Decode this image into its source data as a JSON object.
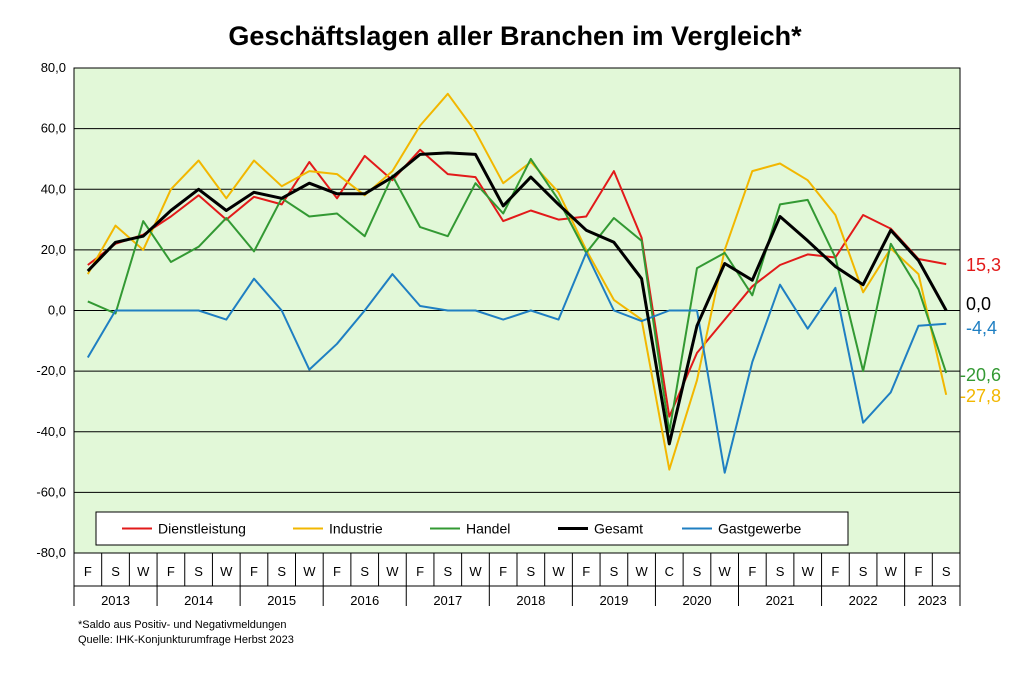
{
  "chart_data": {
    "type": "line",
    "title": "Geschäftslagen aller Branchen im Vergleich*",
    "ylim": [
      -80,
      80
    ],
    "yticks": [
      "80,0",
      "60,0",
      "40,0",
      "20,0",
      "0,0",
      "-20,0",
      "-40,0",
      "-60,0",
      "-80,0"
    ],
    "grid": true,
    "legend_position": "bottom-inside",
    "background": "#e2f8d8",
    "x": [
      "F",
      "S",
      "W",
      "F",
      "S",
      "W",
      "F",
      "S",
      "W",
      "F",
      "S",
      "W",
      "F",
      "S",
      "W",
      "F",
      "S",
      "W",
      "F",
      "S",
      "W",
      "C",
      "S",
      "W",
      "F",
      "S",
      "W",
      "F",
      "S",
      "W",
      "F",
      "S"
    ],
    "years": [
      {
        "label": "2013",
        "span": 3
      },
      {
        "label": "2014",
        "span": 3
      },
      {
        "label": "2015",
        "span": 3
      },
      {
        "label": "2016",
        "span": 3
      },
      {
        "label": "2017",
        "span": 3
      },
      {
        "label": "2018",
        "span": 3
      },
      {
        "label": "2019",
        "span": 3
      },
      {
        "label": "2020",
        "span": 3
      },
      {
        "label": "2021",
        "span": 3
      },
      {
        "label": "2022",
        "span": 3
      },
      {
        "label": "2023",
        "span": 2
      }
    ],
    "series": [
      {
        "name": "Dienstleistung",
        "color": "#e21a1a",
        "width": 2,
        "end_label": "15,3",
        "values": [
          15,
          22,
          25,
          31,
          38,
          30,
          37.5,
          35,
          49,
          37,
          51,
          43,
          53,
          45,
          44,
          29.5,
          33,
          30,
          31,
          46,
          24,
          -35,
          -14,
          -3,
          8,
          15,
          18.5,
          17.5,
          31.5,
          27,
          17,
          15.3
        ]
      },
      {
        "name": "Industrie",
        "color": "#f2b700",
        "width": 2,
        "end_label": "-27,8",
        "values": [
          12,
          28,
          20,
          40,
          49.5,
          37,
          49.5,
          41,
          46,
          45,
          38,
          46,
          61,
          71.5,
          59,
          42,
          49,
          39,
          20,
          3.5,
          -3,
          -52.5,
          -23,
          20,
          46,
          48.5,
          43,
          31.5,
          6,
          20.5,
          12,
          -27.8
        ]
      },
      {
        "name": "Handel",
        "color": "#339933",
        "width": 2,
        "end_label": "-20,6",
        "values": [
          3,
          -1,
          29.5,
          16,
          21,
          30.5,
          19.5,
          37,
          31,
          32,
          24.5,
          44.5,
          27.5,
          24.5,
          42,
          32,
          50,
          36.5,
          19,
          30.5,
          23,
          -40,
          14,
          19,
          5,
          35,
          36.5,
          17.5,
          -20,
          22,
          7,
          -20.6
        ]
      },
      {
        "name": "Gesamt",
        "color": "#000000",
        "width": 3,
        "end_label": "0,0",
        "values": [
          13,
          22.5,
          24.5,
          33,
          40,
          33,
          39,
          37,
          42,
          38.5,
          38.5,
          44,
          51.5,
          52,
          51.5,
          34.5,
          44,
          35,
          26.5,
          22.5,
          10.5,
          -44,
          -5,
          15.5,
          10,
          31,
          23,
          14.5,
          8.5,
          26.5,
          16.5,
          0.0
        ]
      },
      {
        "name": "Gastgewerbe",
        "color": "#1f7fc2",
        "width": 2,
        "end_label": "-4,4",
        "values": [
          -15.5,
          0,
          0,
          0,
          0,
          -3,
          10.5,
          0,
          -19.5,
          -11,
          0,
          12,
          1.5,
          0,
          0,
          -3,
          0,
          -3,
          19,
          0,
          -3.5,
          0,
          0,
          -53.5,
          -17,
          8.5,
          -6,
          7.5,
          -37,
          -27,
          -5,
          -4.4
        ]
      }
    ],
    "legend_order": [
      "Dienstleistung",
      "Industrie",
      "Handel",
      "Gesamt",
      "Gastgewerbe"
    ]
  },
  "notes": {
    "line1": "*Saldo aus Positiv- und Negativmeldungen",
    "line2": "Quelle: IHK-Konjunkturumfrage Herbst 2023"
  }
}
